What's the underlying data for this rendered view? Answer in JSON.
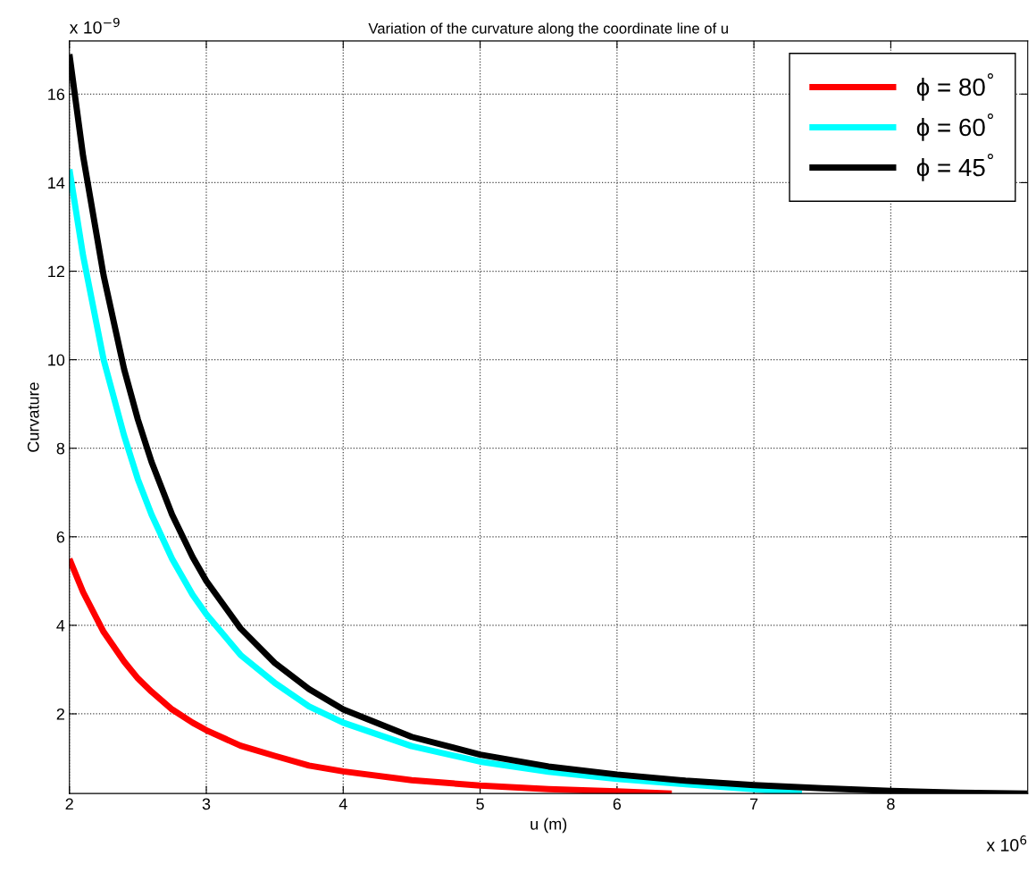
{
  "chart_data": {
    "type": "line",
    "title": "Variation of the curvature along the coordinate line of u",
    "xlabel": "u (m)",
    "ylabel": "Curvature",
    "annotations": [
      "x 10$^{−9}$",
      "x 10$^{6}$"
    ],
    "xlim": [
      2,
      9
    ],
    "xticks": [
      2,
      3,
      4,
      5,
      6,
      7,
      8
    ],
    "ylim": [
      0.2,
      17.2
    ],
    "yticks": [
      2,
      4,
      6,
      8,
      10,
      12,
      14,
      16
    ],
    "grid": true,
    "legend": "top right",
    "marker": "none",
    "line_style": "solid",
    "series": [
      {
        "name": "ϕ = 80$^{°}$",
        "color": "#ff0000",
        "x": [
          2,
          2.1,
          2.25,
          2.4,
          2.5,
          2.6,
          2.75,
          2.9,
          3,
          3.25,
          3.5,
          3.75,
          4,
          4.5,
          5,
          5.5,
          6,
          6.4
        ],
        "values": [
          5.5,
          4.75,
          3.85,
          3.18,
          2.8,
          2.5,
          2.1,
          1.8,
          1.63,
          1.28,
          1.05,
          0.83,
          0.7,
          0.5,
          0.38,
          0.3,
          0.25,
          0.2
        ]
      },
      {
        "name": "ϕ = 60$^{°}$",
        "color": "#00ffff",
        "x": [
          2,
          2.1,
          2.25,
          2.4,
          2.5,
          2.6,
          2.75,
          2.9,
          3,
          3.25,
          3.5,
          3.75,
          4,
          4.5,
          5,
          5.5,
          6,
          6.5,
          7,
          7.35
        ],
        "values": [
          14.3,
          12.35,
          10.0,
          8.28,
          7.3,
          6.5,
          5.5,
          4.69,
          4.25,
          3.33,
          2.7,
          2.17,
          1.8,
          1.27,
          0.92,
          0.69,
          0.53,
          0.41,
          0.3,
          0.2
        ]
      },
      {
        "name": "ϕ = 45$^{°}$",
        "color": "#000000",
        "x": [
          2,
          2.1,
          2.25,
          2.4,
          2.5,
          2.6,
          2.75,
          2.9,
          3,
          3.25,
          3.5,
          3.75,
          4,
          4.5,
          5,
          5.5,
          6,
          6.5,
          7,
          7.5,
          8,
          8.5,
          9
        ],
        "values": [
          16.9,
          14.6,
          11.9,
          9.78,
          8.65,
          7.69,
          6.5,
          5.54,
          5.0,
          3.93,
          3.15,
          2.56,
          2.1,
          1.48,
          1.08,
          0.81,
          0.63,
          0.49,
          0.39,
          0.32,
          0.26,
          0.22,
          0.2
        ]
      }
    ]
  }
}
